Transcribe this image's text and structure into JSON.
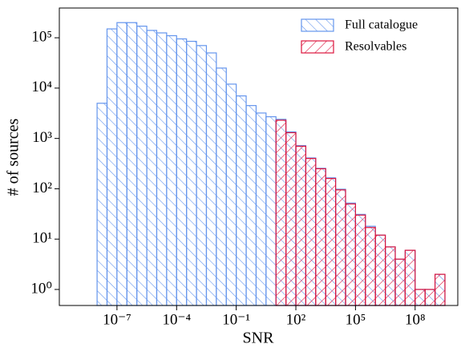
{
  "chart_data": {
    "type": "histogram",
    "xlabel": "SNR",
    "ylabel": "# of sources",
    "xscale": "log",
    "yscale": "log",
    "xlim": [
      1.26e-10,
      14000000000.0
    ],
    "ylim": [
      0.48,
      390000
    ],
    "xticks": [
      {
        "value": 1e-07,
        "label": "10⁻⁷"
      },
      {
        "value": 0.0001,
        "label": "10⁻⁴"
      },
      {
        "value": 0.1,
        "label": "10⁻¹"
      },
      {
        "value": 100,
        "label": "10²"
      },
      {
        "value": 100000,
        "label": "10⁵"
      },
      {
        "value": 100000000,
        "label": "10⁸"
      }
    ],
    "yticks": [
      {
        "value": 1,
        "label": "10⁰"
      },
      {
        "value": 10,
        "label": "10¹"
      },
      {
        "value": 100,
        "label": "10²"
      },
      {
        "value": 1000,
        "label": "10³"
      },
      {
        "value": 10000,
        "label": "10⁴"
      },
      {
        "value": 100000,
        "label": "10⁵"
      }
    ],
    "legend": "upper right",
    "series": [
      {
        "name": "Full catalogue",
        "color": "#6495ed",
        "hatch": "\\",
        "bins": [
          1e-08,
          3.162e-08,
          1e-07,
          3.162e-07,
          1e-06,
          3.162e-06,
          1e-05,
          3.162e-05,
          0.0001,
          0.0003162,
          0.001,
          0.003162,
          0.01,
          0.03162,
          0.1,
          0.3162,
          1,
          3.162,
          10,
          31.62,
          100,
          316.2,
          1000,
          3162,
          10000,
          31620,
          100000,
          316200,
          1000000,
          3162000,
          10000000,
          31620000,
          100000000,
          316200000,
          1000000000,
          3162000000
        ],
        "values": [
          5000,
          150000,
          200000,
          200000,
          170000,
          140000,
          125000,
          110000,
          95000,
          85000,
          70000,
          50000,
          25000,
          12000,
          7000,
          4500,
          3200,
          2700,
          2400,
          1350,
          720,
          410,
          255,
          165,
          98,
          52,
          31,
          18,
          12,
          7,
          4,
          6,
          1,
          1,
          2
        ]
      },
      {
        "name": "Resolvables",
        "color": "#dc143c",
        "hatch": "/",
        "bins": [
          10,
          31.62,
          100,
          316.2,
          1000,
          3162,
          10000,
          31620,
          100000,
          316200,
          1000000,
          3162000,
          10000000,
          31620000,
          100000000,
          316200000,
          1000000000,
          3162000000
        ],
        "values": [
          2300,
          1300,
          700,
          400,
          250,
          160,
          95,
          50,
          30,
          17,
          12,
          7,
          4,
          6,
          1,
          1,
          2
        ]
      }
    ]
  }
}
